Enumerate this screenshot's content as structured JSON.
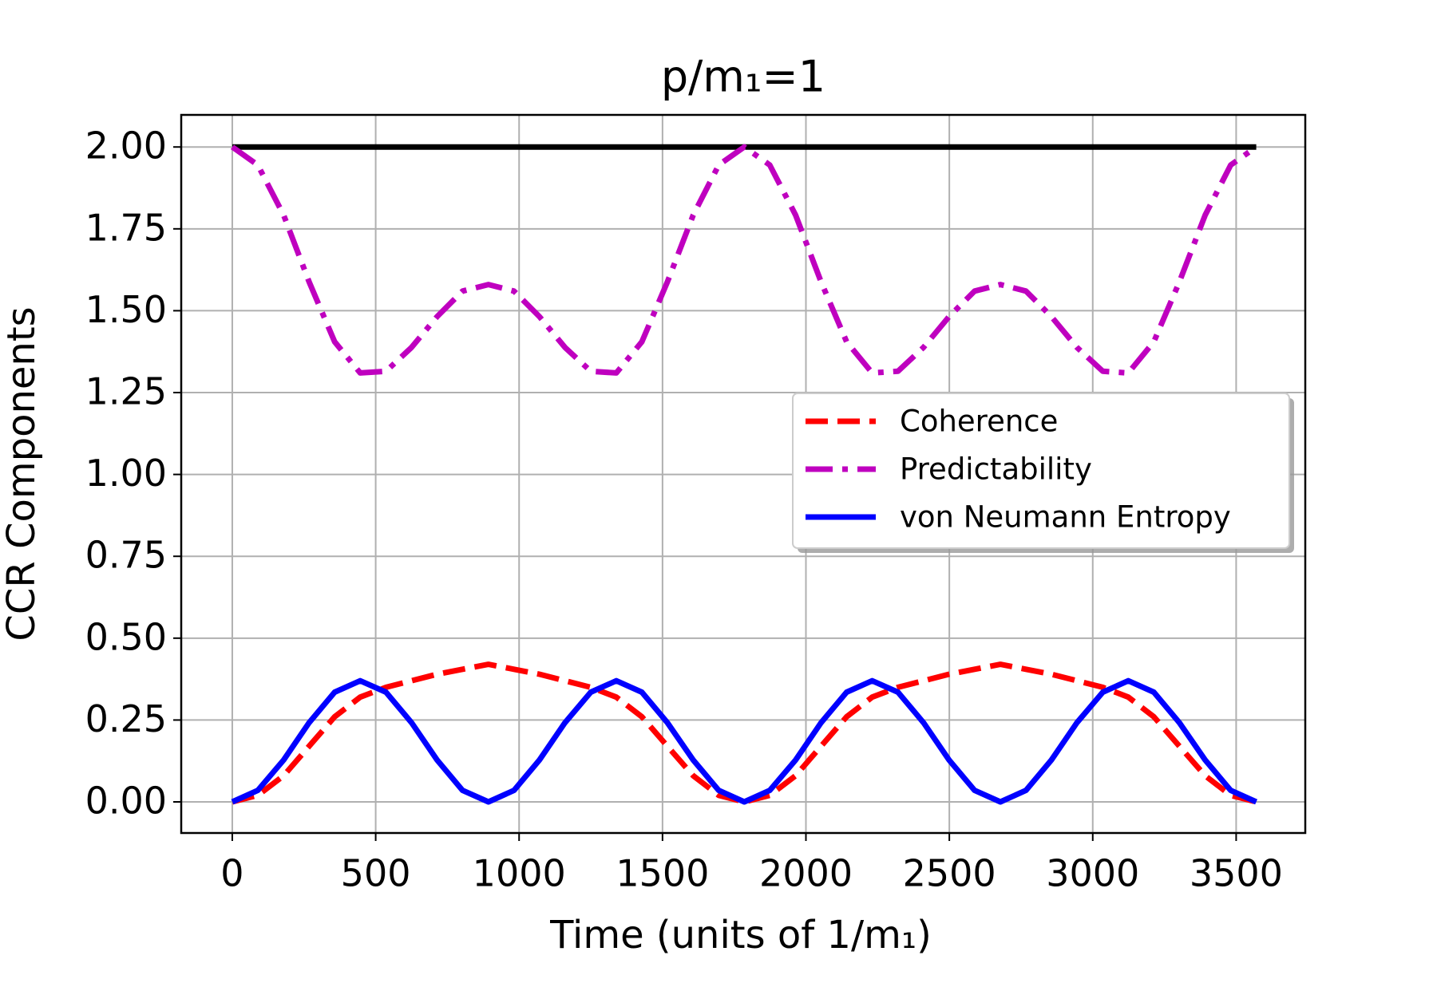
{
  "chart_data": {
    "type": "line",
    "title": "p/m₁=1",
    "xlabel": "Time (units of 1/m₁)",
    "ylabel": "CCR Components",
    "x": [
      0,
      89,
      179,
      268,
      357,
      446,
      536,
      625,
      714,
      803,
      893,
      982,
      1071,
      1160,
      1250,
      1339,
      1428,
      1517,
      1607,
      1696,
      1785,
      1874,
      1964,
      2053,
      2142,
      2231,
      2321,
      2410,
      2499,
      2588,
      2678,
      2767,
      2856,
      2945,
      3035,
      3124,
      3213,
      3302,
      3392,
      3481,
      3570
    ],
    "series": [
      {
        "color": "#000000",
        "style": "solid",
        "values": [
          2,
          2,
          2,
          2,
          2,
          2,
          2,
          2,
          2,
          2,
          2,
          2,
          2,
          2,
          2,
          2,
          2,
          2,
          2,
          2,
          2,
          2,
          2,
          2,
          2,
          2,
          2,
          2,
          2,
          2,
          2,
          2,
          2,
          2,
          2,
          2,
          2,
          2,
          2,
          2,
          2
        ]
      },
      {
        "name": "Coherence",
        "color": "#ff0000",
        "style": "dashed",
        "values": [
          0,
          0.02,
          0.08,
          0.17,
          0.26,
          0.32,
          0.35,
          0.37,
          0.39,
          0.405,
          0.42,
          0.405,
          0.39,
          0.37,
          0.35,
          0.32,
          0.26,
          0.17,
          0.08,
          0.02,
          0,
          0.02,
          0.08,
          0.17,
          0.26,
          0.32,
          0.35,
          0.37,
          0.39,
          0.405,
          0.42,
          0.405,
          0.39,
          0.37,
          0.35,
          0.32,
          0.26,
          0.17,
          0.08,
          0.02,
          0
        ]
      },
      {
        "name": "Predictability",
        "color": "#bf00bf",
        "style": "dashdot",
        "values": [
          2,
          1.945,
          1.792,
          1.588,
          1.405,
          1.31,
          1.315,
          1.388,
          1.482,
          1.56,
          1.58,
          1.56,
          1.482,
          1.388,
          1.315,
          1.31,
          1.405,
          1.588,
          1.792,
          1.945,
          2,
          1.945,
          1.792,
          1.588,
          1.405,
          1.31,
          1.315,
          1.388,
          1.482,
          1.56,
          1.58,
          1.56,
          1.482,
          1.388,
          1.315,
          1.31,
          1.405,
          1.588,
          1.792,
          1.945,
          2
        ]
      },
      {
        "name": "von Neumann Entropy",
        "color": "#0000ff",
        "style": "solid",
        "values": [
          0,
          0.035,
          0.128,
          0.242,
          0.335,
          0.37,
          0.335,
          0.242,
          0.128,
          0.035,
          0,
          0.035,
          0.128,
          0.242,
          0.335,
          0.37,
          0.335,
          0.242,
          0.128,
          0.035,
          0,
          0.035,
          0.128,
          0.242,
          0.335,
          0.37,
          0.335,
          0.242,
          0.128,
          0.035,
          0,
          0.035,
          0.128,
          0.242,
          0.335,
          0.37,
          0.335,
          0.242,
          0.128,
          0.035,
          0
        ]
      }
    ],
    "xlim": [
      -178,
      3741
    ],
    "xticks": [
      0,
      500,
      1000,
      1500,
      2000,
      2500,
      3000,
      3500
    ],
    "ylim": [
      -0.095,
      2.098
    ],
    "yticks": [
      {
        "value": 0,
        "label": "0.00"
      },
      {
        "value": 0.25,
        "label": "0.25"
      },
      {
        "value": 0.5,
        "label": "0.50"
      },
      {
        "value": 0.75,
        "label": "0.75"
      },
      {
        "value": 1,
        "label": "1.00"
      },
      {
        "value": 1.25,
        "label": "1.25"
      },
      {
        "value": 1.5,
        "label": "1.50"
      },
      {
        "value": 1.75,
        "label": "1.75"
      },
      {
        "value": 2,
        "label": "2.00"
      }
    ],
    "grid": true,
    "legend": "center right"
  }
}
